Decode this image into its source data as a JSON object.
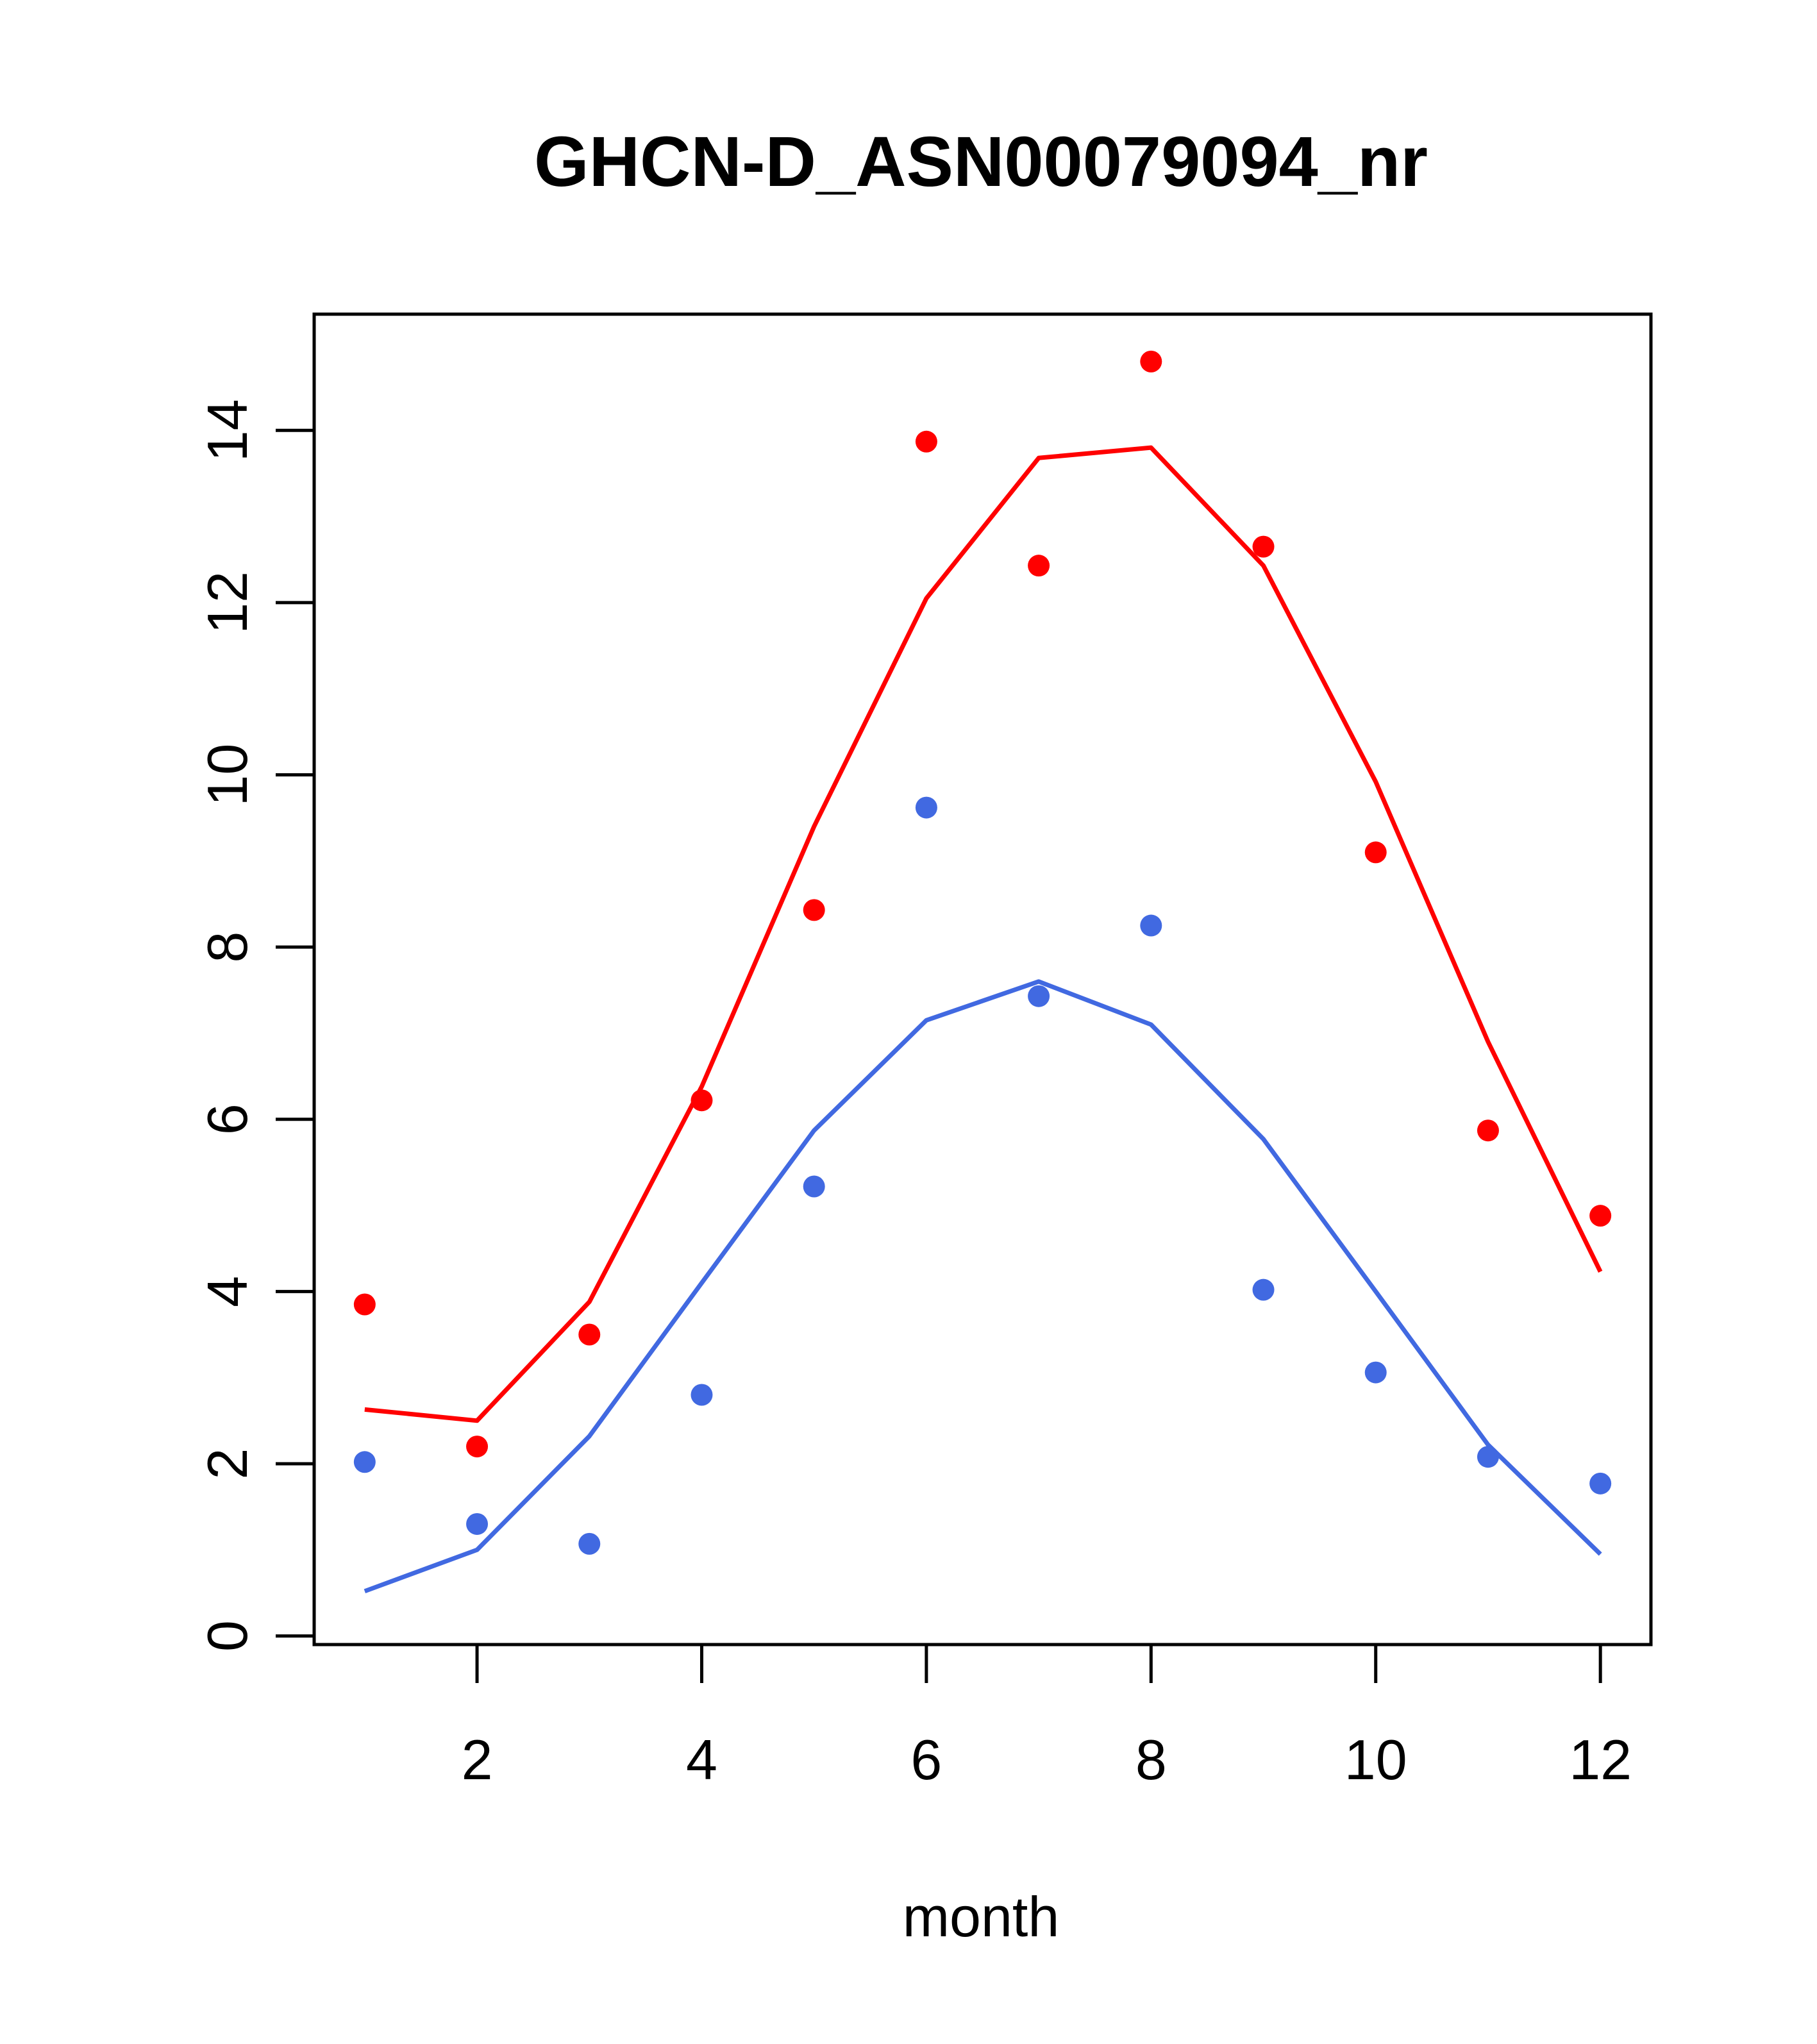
{
  "chart_data": {
    "type": "scatter",
    "title": "GHCN-D_ASN00079094_nr",
    "xlabel": "month",
    "ylabel": "",
    "xlim": [
      0.55,
      12.45
    ],
    "ylim": [
      -0.1,
      15.35
    ],
    "x_ticks": [
      2,
      4,
      6,
      8,
      10,
      12
    ],
    "y_ticks": [
      0,
      2,
      4,
      6,
      8,
      10,
      12,
      14
    ],
    "grid": false,
    "series": [
      {
        "kind": "points",
        "color": "#ff0000",
        "x": [
          1,
          2,
          3,
          4,
          5,
          6,
          7,
          8,
          9,
          10,
          11,
          12
        ],
        "y": [
          3.85,
          2.2,
          3.5,
          6.22,
          8.43,
          13.87,
          12.43,
          14.8,
          12.65,
          9.1,
          5.87,
          4.88
        ]
      },
      {
        "kind": "line",
        "color": "#ff0000",
        "x": [
          1,
          2,
          3,
          4,
          5,
          6,
          7,
          8,
          9,
          10,
          11,
          12
        ],
        "y": [
          2.63,
          2.5,
          3.88,
          6.38,
          9.4,
          12.05,
          13.68,
          13.8,
          12.43,
          9.92,
          6.9,
          4.23
        ]
      },
      {
        "kind": "points",
        "color": "#4169e1",
        "x": [
          1,
          2,
          3,
          4,
          5,
          6,
          7,
          8,
          9,
          10,
          11,
          12
        ],
        "y": [
          2.02,
          1.3,
          1.07,
          2.8,
          5.22,
          9.62,
          7.43,
          8.25,
          4.02,
          3.06,
          2.08,
          1.77
        ]
      },
      {
        "kind": "line",
        "color": "#4169e1",
        "x": [
          1,
          2,
          3,
          4,
          5,
          6,
          7,
          8,
          9,
          10,
          11,
          12
        ],
        "y": [
          0.52,
          1.0,
          2.32,
          4.1,
          5.87,
          7.15,
          7.6,
          7.1,
          5.77,
          4.0,
          2.22,
          0.95
        ]
      }
    ]
  }
}
